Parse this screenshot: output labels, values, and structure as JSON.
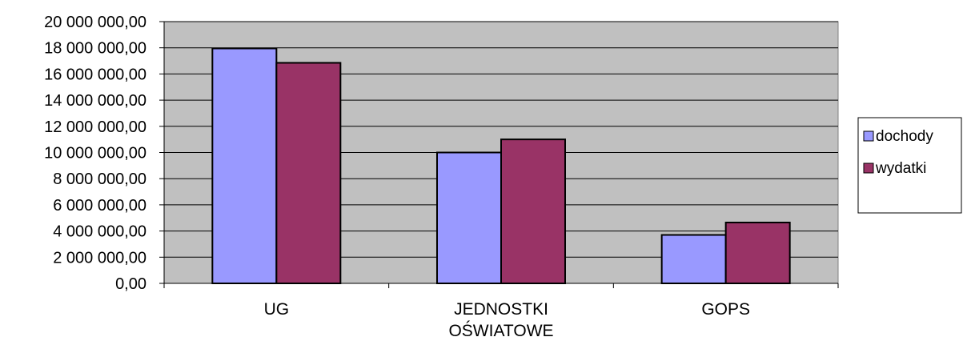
{
  "chart_data": {
    "type": "bar",
    "categories": [
      [
        "UG"
      ],
      [
        "JEDNOSTKI",
        "OŚWIATOWE"
      ],
      [
        "GOPS"
      ]
    ],
    "series": [
      {
        "name": "dochody",
        "color": "#9999ff",
        "values": [
          17950000,
          10000000,
          3700000
        ]
      },
      {
        "name": "wydatki",
        "color": "#993366",
        "values": [
          16850000,
          11000000,
          4650000
        ]
      }
    ],
    "y_tick_labels": [
      "0,00",
      "2 000 000,00",
      "4 000 000,00",
      "6 000 000,00",
      "8 000 000,00",
      "10 000 000,00",
      "12 000 000,00",
      "14 000 000,00",
      "16 000 000,00",
      "18 000 000,00",
      "20 000 000,00"
    ],
    "ylim": [
      0,
      20000000
    ],
    "y_tick_step": 2000000,
    "grid": true,
    "plot_background": "#c0c0c0",
    "legend_position": "right",
    "title": "",
    "xlabel": "",
    "ylabel": ""
  }
}
